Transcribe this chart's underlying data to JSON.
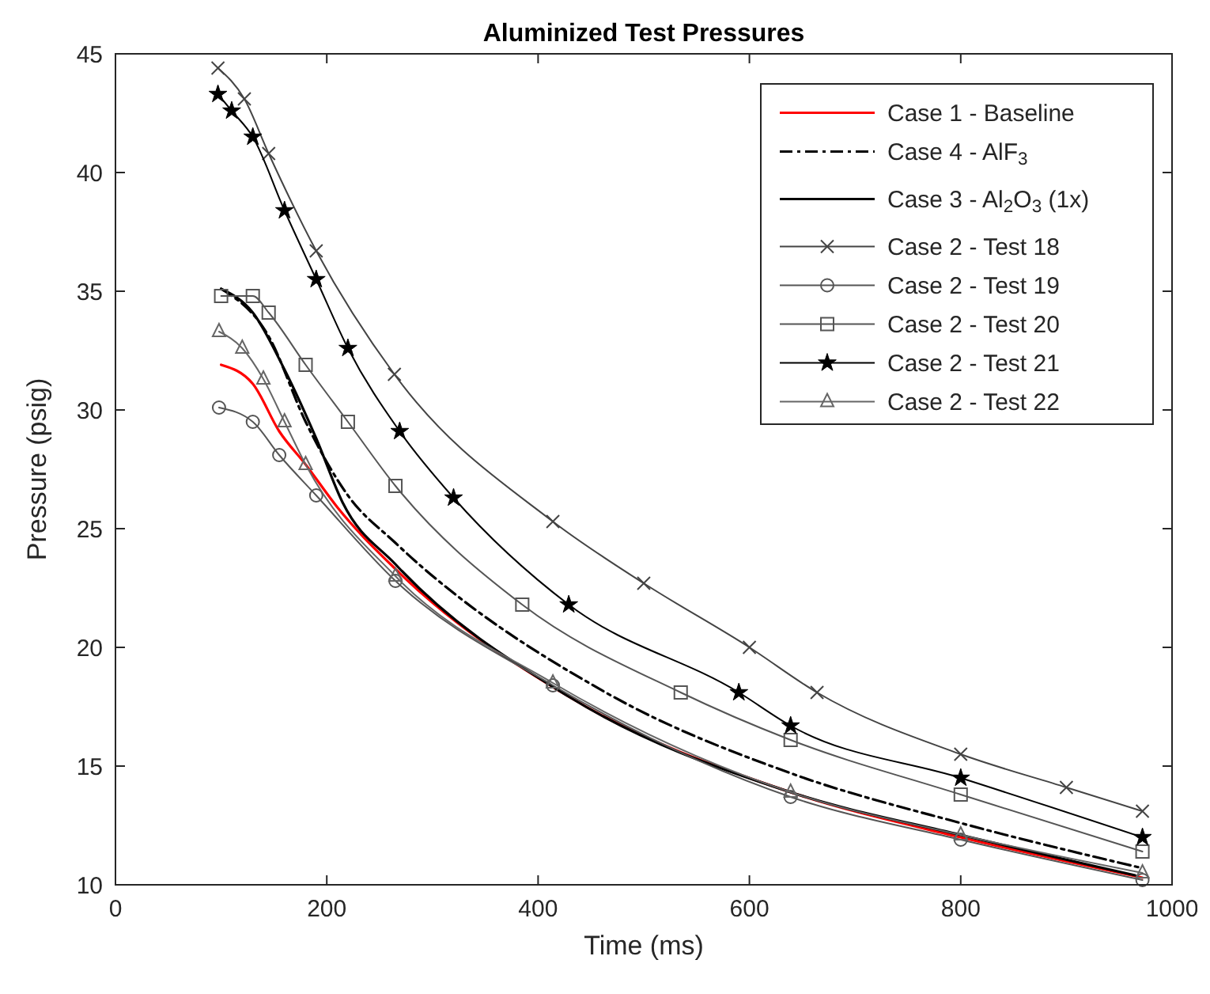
{
  "chart_data": {
    "type": "line",
    "title": "Aluminized Test Pressures",
    "xlabel": "Time (ms)",
    "ylabel": "Pressure (psig)",
    "xlim": [
      0,
      1000
    ],
    "xticks": [
      0,
      200,
      400,
      600,
      800,
      1000
    ],
    "ylim": [
      10,
      45
    ],
    "yticks": [
      10,
      15,
      20,
      25,
      30,
      35,
      40,
      45
    ],
    "grid": false,
    "legend": "top right",
    "series": [
      {
        "name": "Case 1 - Baseline",
        "color": "#ff0000",
        "marker": "none",
        "line_style": "solid",
        "x": [
          100,
          130,
          155,
          180,
          210,
          265,
          430,
          639,
          800,
          972
        ],
        "values": [
          31.9,
          31.1,
          29.1,
          27.7,
          25.9,
          23.3,
          17.9,
          13.9,
          12.0,
          10.3
        ]
      },
      {
        "name": "Case 4 - AlF$_{3}$",
        "color": "#000000",
        "marker": "none",
        "line_style": "dashed",
        "x": [
          100,
          145,
          180,
          220,
          265,
          464,
          639,
          800,
          972
        ],
        "values": [
          35.1,
          33.1,
          29.5,
          26.4,
          24.4,
          18.1,
          14.7,
          12.6,
          10.7
        ]
      },
      {
        "name": "Case 3 - Al$_{2}$O$_{3}$ (1x)",
        "color": "#000000",
        "marker": "none",
        "line_style": "solid",
        "x": [
          100,
          130,
          160,
          190,
          215,
          265,
          430,
          639,
          800,
          965
        ],
        "values": [
          35.1,
          34.1,
          31.7,
          28.8,
          26.1,
          23.5,
          17.9,
          13.9,
          12.1,
          10.4
        ]
      },
      {
        "name": "Case 2 - Test 18",
        "color": "#444444",
        "marker": "cross",
        "line_style": "solid",
        "x": [
          97,
          122,
          145,
          190,
          264,
          414,
          500,
          600,
          664,
          800,
          900,
          972
        ],
        "values": [
          44.4,
          43.1,
          40.8,
          36.7,
          31.5,
          25.3,
          22.7,
          20.0,
          18.1,
          15.5,
          14.1,
          13.1
        ]
      },
      {
        "name": "Case 2 - Test 19",
        "color": "#555555",
        "marker": "circle",
        "line_style": "solid",
        "x": [
          98,
          130,
          155,
          190,
          265,
          414,
          639,
          800,
          972
        ],
        "values": [
          30.1,
          29.5,
          28.1,
          26.4,
          22.8,
          18.4,
          13.7,
          11.9,
          10.2
        ]
      },
      {
        "name": "Case 2 - Test 20",
        "color": "#555555",
        "marker": "square",
        "line_style": "solid",
        "x": [
          100,
          130,
          145,
          180,
          220,
          265,
          385,
          535,
          639,
          800,
          972
        ],
        "values": [
          34.8,
          34.8,
          34.1,
          31.9,
          29.5,
          26.8,
          21.8,
          18.1,
          16.1,
          13.8,
          11.4
        ]
      },
      {
        "name": "Case 2 - Test 21",
        "color": "#000000",
        "marker": "star",
        "line_style": "solid",
        "x": [
          97,
          110,
          130,
          160,
          190,
          220,
          269,
          320,
          429,
          590,
          639,
          800,
          972
        ],
        "values": [
          43.3,
          42.6,
          41.5,
          38.4,
          35.5,
          32.6,
          29.1,
          26.3,
          21.8,
          18.1,
          16.7,
          14.5,
          12.0
        ]
      },
      {
        "name": "Case 2 - Test 22",
        "color": "#666666",
        "marker": "triangle",
        "line_style": "solid",
        "x": [
          98,
          120,
          140,
          160,
          180,
          265,
          414,
          639,
          800,
          972
        ],
        "values": [
          33.3,
          32.6,
          31.3,
          29.5,
          27.7,
          23.0,
          18.5,
          13.9,
          12.1,
          10.5
        ]
      }
    ]
  }
}
